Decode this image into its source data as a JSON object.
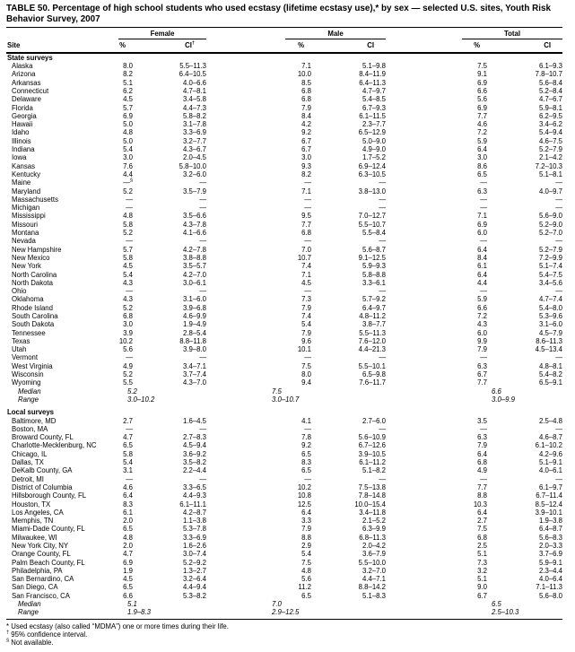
{
  "title": "TABLE 50. Percentage of high school students who used ecstasy (lifetime ecstasy use),* by sex — selected U.S. sites, Youth Risk Behavior Survey, 2007",
  "table": {
    "site_header": "Site",
    "groups": [
      {
        "label": "Female"
      },
      {
        "label": "Male"
      },
      {
        "label": "Total"
      }
    ],
    "sub": {
      "pct": "%",
      "ci_f": "CI",
      "ci_f_sup": "†",
      "ci_m": "CI",
      "ci_t": "CI"
    },
    "rows": [
      {
        "type": "section",
        "site": "State surveys"
      },
      {
        "type": "data",
        "site": "Alaska",
        "cells": [
          "8.0",
          "5.5–11.3",
          "7.1",
          "5.1–9.8",
          "7.5",
          "6.1–9.3"
        ]
      },
      {
        "type": "data",
        "site": "Arizona",
        "cells": [
          "8.2",
          "6.4–10.5",
          "10.0",
          "8.4–11.9",
          "9.1",
          "7.8–10.7"
        ]
      },
      {
        "type": "data",
        "site": "Arkansas",
        "cells": [
          "5.1",
          "4.0–6.6",
          "8.5",
          "6.4–11.3",
          "6.9",
          "5.6–8.4"
        ]
      },
      {
        "type": "data",
        "site": "Connecticut",
        "cells": [
          "6.2",
          "4.7–8.1",
          "6.8",
          "4.7–9.7",
          "6.6",
          "5.2–8.4"
        ]
      },
      {
        "type": "data",
        "site": "Delaware",
        "cells": [
          "4.5",
          "3.4–5.8",
          "6.8",
          "5.4–8.5",
          "5.6",
          "4.7–6.7"
        ]
      },
      {
        "type": "data",
        "site": "Florida",
        "cells": [
          "5.7",
          "4.4–7.3",
          "7.9",
          "6.7–9.3",
          "6.9",
          "5.9–8.1"
        ]
      },
      {
        "type": "data",
        "site": "Georgia",
        "cells": [
          "6.9",
          "5.8–8.2",
          "8.4",
          "6.1–11.5",
          "7.7",
          "6.2–9.5"
        ]
      },
      {
        "type": "data",
        "site": "Hawaii",
        "cells": [
          "5.0",
          "3.1–7.8",
          "4.2",
          "2.3–7.7",
          "4.6",
          "3.4–6.2"
        ]
      },
      {
        "type": "data",
        "site": "Idaho",
        "cells": [
          "4.8",
          "3.3–6.9",
          "9.2",
          "6.5–12.9",
          "7.2",
          "5.4–9.4"
        ]
      },
      {
        "type": "data",
        "site": "Illinois",
        "cells": [
          "5.0",
          "3.2–7.7",
          "6.7",
          "5.0–9.0",
          "5.9",
          "4.6–7.5"
        ]
      },
      {
        "type": "data",
        "site": "Indiana",
        "cells": [
          "5.4",
          "4.3–6.7",
          "6.7",
          "4.9–9.0",
          "6.4",
          "5.2–7.9"
        ]
      },
      {
        "type": "data",
        "site": "Iowa",
        "cells": [
          "3.0",
          "2.0–4.5",
          "3.0",
          "1.7–5.2",
          "3.0",
          "2.1–4.2"
        ]
      },
      {
        "type": "data",
        "site": "Kansas",
        "cells": [
          "7.6",
          "5.8–10.0",
          "9.3",
          "6.9–12.4",
          "8.6",
          "7.2–10.3"
        ]
      },
      {
        "type": "data",
        "site": "Kentucky",
        "cells": [
          "4.4",
          "3.2–6.0",
          "8.2",
          "6.3–10.5",
          "6.5",
          "5.1–8.1"
        ]
      },
      {
        "type": "data",
        "site": "Maine",
        "cells": [
          "—§",
          "—",
          "—",
          "—",
          "—",
          "—"
        ]
      },
      {
        "type": "data",
        "site": "Maryland",
        "cells": [
          "5.2",
          "3.5–7.9",
          "7.1",
          "3.8–13.0",
          "6.3",
          "4.0–9.7"
        ]
      },
      {
        "type": "data",
        "site": "Massachusetts",
        "cells": [
          "—",
          "—",
          "—",
          "—",
          "—",
          "—"
        ]
      },
      {
        "type": "data",
        "site": "Michigan",
        "cells": [
          "—",
          "—",
          "—",
          "—",
          "—",
          "—"
        ]
      },
      {
        "type": "data",
        "site": "Mississippi",
        "cells": [
          "4.8",
          "3.5–6.6",
          "9.5",
          "7.0–12.7",
          "7.1",
          "5.6–9.0"
        ]
      },
      {
        "type": "data",
        "site": "Missouri",
        "cells": [
          "5.8",
          "4.3–7.8",
          "7.7",
          "5.5–10.7",
          "6.9",
          "5.2–9.0"
        ]
      },
      {
        "type": "data",
        "site": "Montana",
        "cells": [
          "5.2",
          "4.1–6.6",
          "6.8",
          "5.5–8.4",
          "6.0",
          "5.2–7.0"
        ]
      },
      {
        "type": "data",
        "site": "Nevada",
        "cells": [
          "—",
          "—",
          "—",
          "—",
          "—",
          "—"
        ]
      },
      {
        "type": "data",
        "site": "New Hampshire",
        "cells": [
          "5.7",
          "4.2–7.8",
          "7.0",
          "5.6–8.7",
          "6.4",
          "5.2–7.9"
        ]
      },
      {
        "type": "data",
        "site": "New Mexico",
        "cells": [
          "5.8",
          "3.8–8.8",
          "10.7",
          "9.1–12.5",
          "8.4",
          "7.2–9.9"
        ]
      },
      {
        "type": "data",
        "site": "New York",
        "cells": [
          "4.5",
          "3.5–5.7",
          "7.4",
          "5.9–9.3",
          "6.1",
          "5.1–7.4"
        ]
      },
      {
        "type": "data",
        "site": "North Carolina",
        "cells": [
          "5.4",
          "4.2–7.0",
          "7.1",
          "5.8–8.8",
          "6.4",
          "5.4–7.5"
        ]
      },
      {
        "type": "data",
        "site": "North Dakota",
        "cells": [
          "4.3",
          "3.0–6.1",
          "4.5",
          "3.3–6.1",
          "4.4",
          "3.4–5.6"
        ]
      },
      {
        "type": "data",
        "site": "Ohio",
        "cells": [
          "—",
          "—",
          "—",
          "—",
          "—",
          "—"
        ]
      },
      {
        "type": "data",
        "site": "Oklahoma",
        "cells": [
          "4.3",
          "3.1–6.0",
          "7.3",
          "5.7–9.2",
          "5.9",
          "4.7–7.4"
        ]
      },
      {
        "type": "data",
        "site": "Rhode Island",
        "cells": [
          "5.2",
          "3.9–6.8",
          "7.9",
          "6.4–9.7",
          "6.6",
          "5.4–8.0"
        ]
      },
      {
        "type": "data",
        "site": "South Carolina",
        "cells": [
          "6.8",
          "4.6–9.9",
          "7.4",
          "4.8–11.2",
          "7.2",
          "5.3–9.6"
        ]
      },
      {
        "type": "data",
        "site": "South Dakota",
        "cells": [
          "3.0",
          "1.9–4.9",
          "5.4",
          "3.8–7.7",
          "4.3",
          "3.1–6.0"
        ]
      },
      {
        "type": "data",
        "site": "Tennessee",
        "cells": [
          "3.9",
          "2.8–5.4",
          "7.9",
          "5.5–11.3",
          "6.0",
          "4.5–7.9"
        ]
      },
      {
        "type": "data",
        "site": "Texas",
        "cells": [
          "10.2",
          "8.8–11.8",
          "9.6",
          "7.6–12.0",
          "9.9",
          "8.6–11.3"
        ]
      },
      {
        "type": "data",
        "site": "Utah",
        "cells": [
          "5.6",
          "3.9–8.0",
          "10.1",
          "4.4–21.3",
          "7.9",
          "4.5–13.4"
        ]
      },
      {
        "type": "data",
        "site": "Vermont",
        "cells": [
          "—",
          "—",
          "—",
          "—",
          "—",
          "—"
        ]
      },
      {
        "type": "data",
        "site": "West Virginia",
        "cells": [
          "4.9",
          "3.4–7.1",
          "7.5",
          "5.5–10.1",
          "6.3",
          "4.8–8.1"
        ]
      },
      {
        "type": "data",
        "site": "Wisconsin",
        "cells": [
          "5.2",
          "3.7–7.4",
          "8.0",
          "6.5–9.8",
          "6.7",
          "5.4–8.2"
        ]
      },
      {
        "type": "data",
        "site": "Wyoming",
        "cells": [
          "5.5",
          "4.3–7.0",
          "9.4",
          "7.6–11.7",
          "7.7",
          "6.5–9.1"
        ]
      },
      {
        "type": "median",
        "site": "Median",
        "cells": [
          "5.2",
          "7.5",
          "6.6"
        ]
      },
      {
        "type": "range",
        "site": "Range",
        "cells": [
          "3.0–10.2",
          "3.0–10.7",
          "3.0–9.9"
        ]
      },
      {
        "type": "section",
        "site": "Local surveys",
        "spaced": true
      },
      {
        "type": "data",
        "site": "Baltimore, MD",
        "cells": [
          "2.7",
          "1.6–4.5",
          "4.1",
          "2.7–6.0",
          "3.5",
          "2.5–4.8"
        ]
      },
      {
        "type": "data",
        "site": "Boston, MA",
        "cells": [
          "—",
          "—",
          "—",
          "—",
          "—",
          "—"
        ]
      },
      {
        "type": "data",
        "site": "Broward County, FL",
        "cells": [
          "4.7",
          "2.7–8.3",
          "7.8",
          "5.6–10.9",
          "6.3",
          "4.6–8.7"
        ]
      },
      {
        "type": "data",
        "site": "Charlotte-Mecklenburg, NC",
        "cells": [
          "6.5",
          "4.5–9.4",
          "9.2",
          "6.7–12.6",
          "7.9",
          "6.1–10.2"
        ]
      },
      {
        "type": "data",
        "site": "Chicago, IL",
        "cells": [
          "5.8",
          "3.6–9.2",
          "6.5",
          "3.9–10.5",
          "6.4",
          "4.2–9.6"
        ]
      },
      {
        "type": "data",
        "site": "Dallas, TX",
        "cells": [
          "5.4",
          "3.5–8.2",
          "8.3",
          "6.1–11.2",
          "6.8",
          "5.1–9.1"
        ]
      },
      {
        "type": "data",
        "site": "DeKalb County, GA",
        "cells": [
          "3.1",
          "2.2–4.4",
          "6.5",
          "5.1–8.2",
          "4.9",
          "4.0–6.1"
        ]
      },
      {
        "type": "data",
        "site": "Detroit, MI",
        "cells": [
          "—",
          "—",
          "—",
          "—",
          "—",
          "—"
        ]
      },
      {
        "type": "data",
        "site": "District of Columbia",
        "cells": [
          "4.6",
          "3.3–6.5",
          "10.2",
          "7.5–13.8",
          "7.7",
          "6.1–9.7"
        ]
      },
      {
        "type": "data",
        "site": "Hillsborough County, FL",
        "cells": [
          "6.4",
          "4.4–9.3",
          "10.8",
          "7.8–14.8",
          "8.8",
          "6.7–11.4"
        ]
      },
      {
        "type": "data",
        "site": "Houston, TX",
        "cells": [
          "8.3",
          "6.1–11.1",
          "12.5",
          "10.0–15.4",
          "10.3",
          "8.5–12.4"
        ]
      },
      {
        "type": "data",
        "site": "Los Angeles, CA",
        "cells": [
          "6.1",
          "4.2–8.7",
          "6.4",
          "3.4–11.8",
          "6.4",
          "3.9–10.1"
        ]
      },
      {
        "type": "data",
        "site": "Memphis, TN",
        "cells": [
          "2.0",
          "1.1–3.8",
          "3.3",
          "2.1–5.2",
          "2.7",
          "1.9–3.8"
        ]
      },
      {
        "type": "data",
        "site": "Miami-Dade County, FL",
        "cells": [
          "6.5",
          "5.3–7.8",
          "7.9",
          "6.3–9.9",
          "7.5",
          "6.4–8.7"
        ]
      },
      {
        "type": "data",
        "site": "Milwaukee, WI",
        "cells": [
          "4.8",
          "3.3–6.9",
          "8.8",
          "6.8–11.3",
          "6.8",
          "5.6–8.3"
        ]
      },
      {
        "type": "data",
        "site": "New York City, NY",
        "cells": [
          "2.0",
          "1.6–2.6",
          "2.9",
          "2.0–4.2",
          "2.5",
          "2.0–3.3"
        ]
      },
      {
        "type": "data",
        "site": "Orange County, FL",
        "cells": [
          "4.7",
          "3.0–7.4",
          "5.4",
          "3.6–7.9",
          "5.1",
          "3.7–6.9"
        ]
      },
      {
        "type": "data",
        "site": "Palm Beach County, FL",
        "cells": [
          "6.9",
          "5.2–9.2",
          "7.5",
          "5.5–10.0",
          "7.3",
          "5.9–9.1"
        ]
      },
      {
        "type": "data",
        "site": "Philadelphia, PA",
        "cells": [
          "1.9",
          "1.3–2.7",
          "4.8",
          "3.2–7.0",
          "3.2",
          "2.3–4.4"
        ]
      },
      {
        "type": "data",
        "site": "San Bernardino, CA",
        "cells": [
          "4.5",
          "3.2–6.4",
          "5.6",
          "4.4–7.1",
          "5.1",
          "4.0–6.4"
        ]
      },
      {
        "type": "data",
        "site": "San Diego, CA",
        "cells": [
          "6.5",
          "4.4–9.4",
          "11.2",
          "8.8–14.2",
          "9.0",
          "7.1–11.3"
        ]
      },
      {
        "type": "data",
        "site": "San Francisco, CA",
        "cells": [
          "6.6",
          "5.3–8.2",
          "6.5",
          "5.1–8.3",
          "6.7",
          "5.6–8.0"
        ]
      },
      {
        "type": "median",
        "site": "Median",
        "cells": [
          "5.1",
          "7.0",
          "6.5"
        ]
      },
      {
        "type": "range",
        "site": "Range",
        "cells": [
          "1.9–8.3",
          "2.9–12.5",
          "2.5–10.3"
        ]
      }
    ]
  },
  "footnotes": [
    {
      "marker": "*",
      "text": "Used ecstasy (also called “MDMA”) one or more times during their life.",
      "sup": false
    },
    {
      "marker": "†",
      "text": "95% confidence interval.",
      "sup": true
    },
    {
      "marker": "§",
      "text": "Not available.",
      "sup": true
    }
  ]
}
